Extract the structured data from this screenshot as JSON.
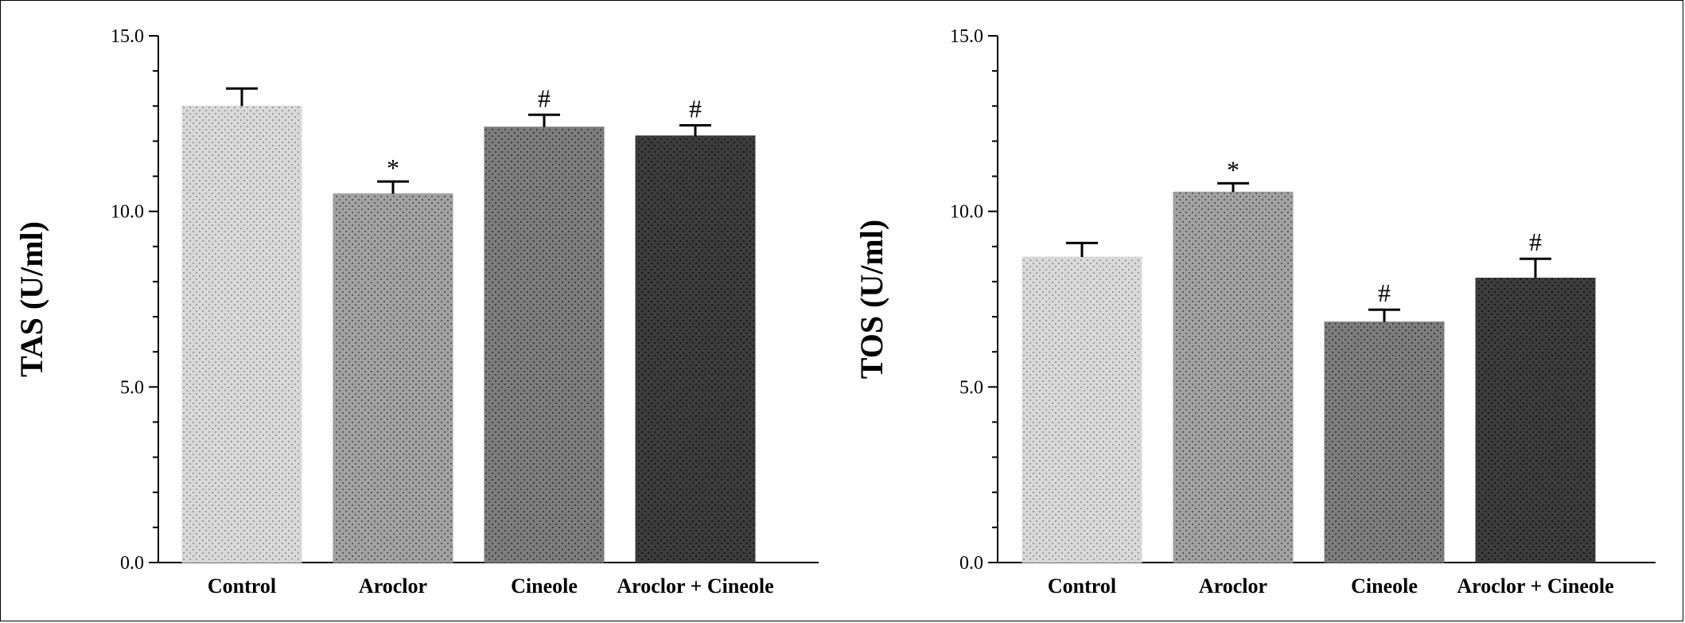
{
  "chart_data": [
    {
      "type": "bar",
      "ylabel": "TAS (U/ml)",
      "ylim": [
        0,
        15
      ],
      "yticks": [
        "0.0",
        "5.0",
        "10.0",
        "15.0"
      ],
      "categories": [
        "Control",
        "Aroclor",
        "Cineole",
        "Aroclor + Cineole"
      ],
      "values": [
        13.0,
        10.5,
        12.4,
        12.15
      ],
      "errors": [
        0.5,
        0.35,
        0.35,
        0.3
      ],
      "annotations": [
        "",
        "*",
        "#",
        "#"
      ],
      "colors": [
        "#d9d9d9",
        "#9c9c9c",
        "#7a7a7a",
        "#3a3a3a"
      ],
      "grid": false,
      "legend": "none"
    },
    {
      "type": "bar",
      "ylabel": "TOS (U/ml)",
      "ylim": [
        0,
        15
      ],
      "yticks": [
        "0.0",
        "5.0",
        "10.0",
        "15.0"
      ],
      "categories": [
        "Control",
        "Aroclor",
        "Cineole",
        "Aroclor + Cineole"
      ],
      "values": [
        8.7,
        10.55,
        6.85,
        8.1
      ],
      "errors": [
        0.4,
        0.25,
        0.35,
        0.55
      ],
      "annotations": [
        "",
        "*",
        "#",
        "#"
      ],
      "colors": [
        "#d9d9d9",
        "#9c9c9c",
        "#7a7a7a",
        "#3a3a3a"
      ],
      "grid": false,
      "legend": "none"
    }
  ]
}
